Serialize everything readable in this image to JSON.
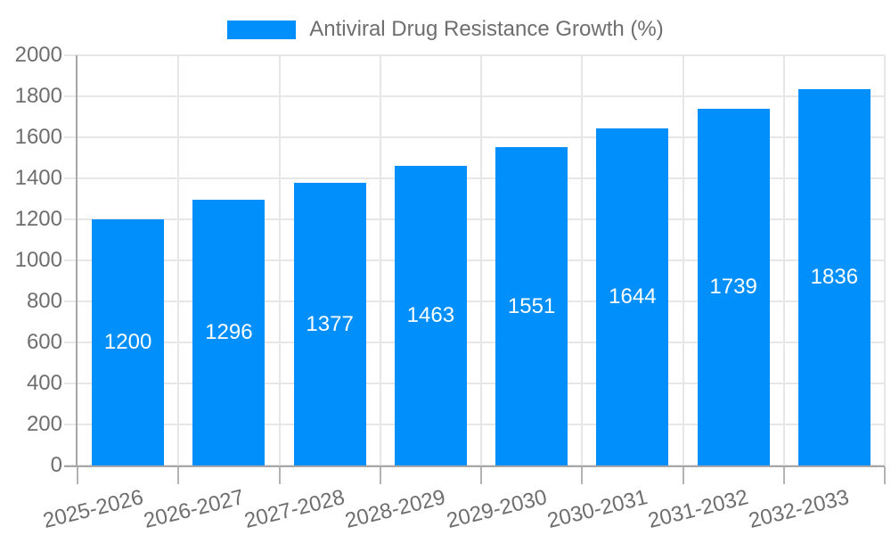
{
  "legend": {
    "label": "Antiviral Drug Resistance Growth (%)"
  },
  "chart_data": {
    "type": "bar",
    "title": "Antiviral Drug Resistance Growth (%)",
    "categories": [
      "2025-2026",
      "2026-2027",
      "2027-2028",
      "2028-2029",
      "2029-2030",
      "2030-2031",
      "2031-2032",
      "2032-2033"
    ],
    "values": [
      1200,
      1296,
      1377,
      1463,
      1551,
      1644,
      1739,
      1836
    ],
    "value_labels": [
      "1200",
      "1296",
      "1377",
      "1463",
      "1551",
      "1644",
      "1739",
      "1836"
    ],
    "xlabel": "",
    "ylabel": "",
    "ylim": [
      0,
      2000
    ],
    "ytick_step": 200,
    "ytick_labels": [
      "0",
      "200",
      "400",
      "600",
      "800",
      "1000",
      "1200",
      "1400",
      "1600",
      "1800",
      "2000"
    ],
    "grid": true,
    "legend_position": "top-center",
    "colors": {
      "bar": "#008FFB",
      "value_label": "#FFFFFF",
      "text": "#6E6E6E",
      "grid": "#E7E7E7",
      "axis": "#A6A6A6",
      "tick": "#B3B3B3",
      "background": "#FFFFFF"
    }
  }
}
